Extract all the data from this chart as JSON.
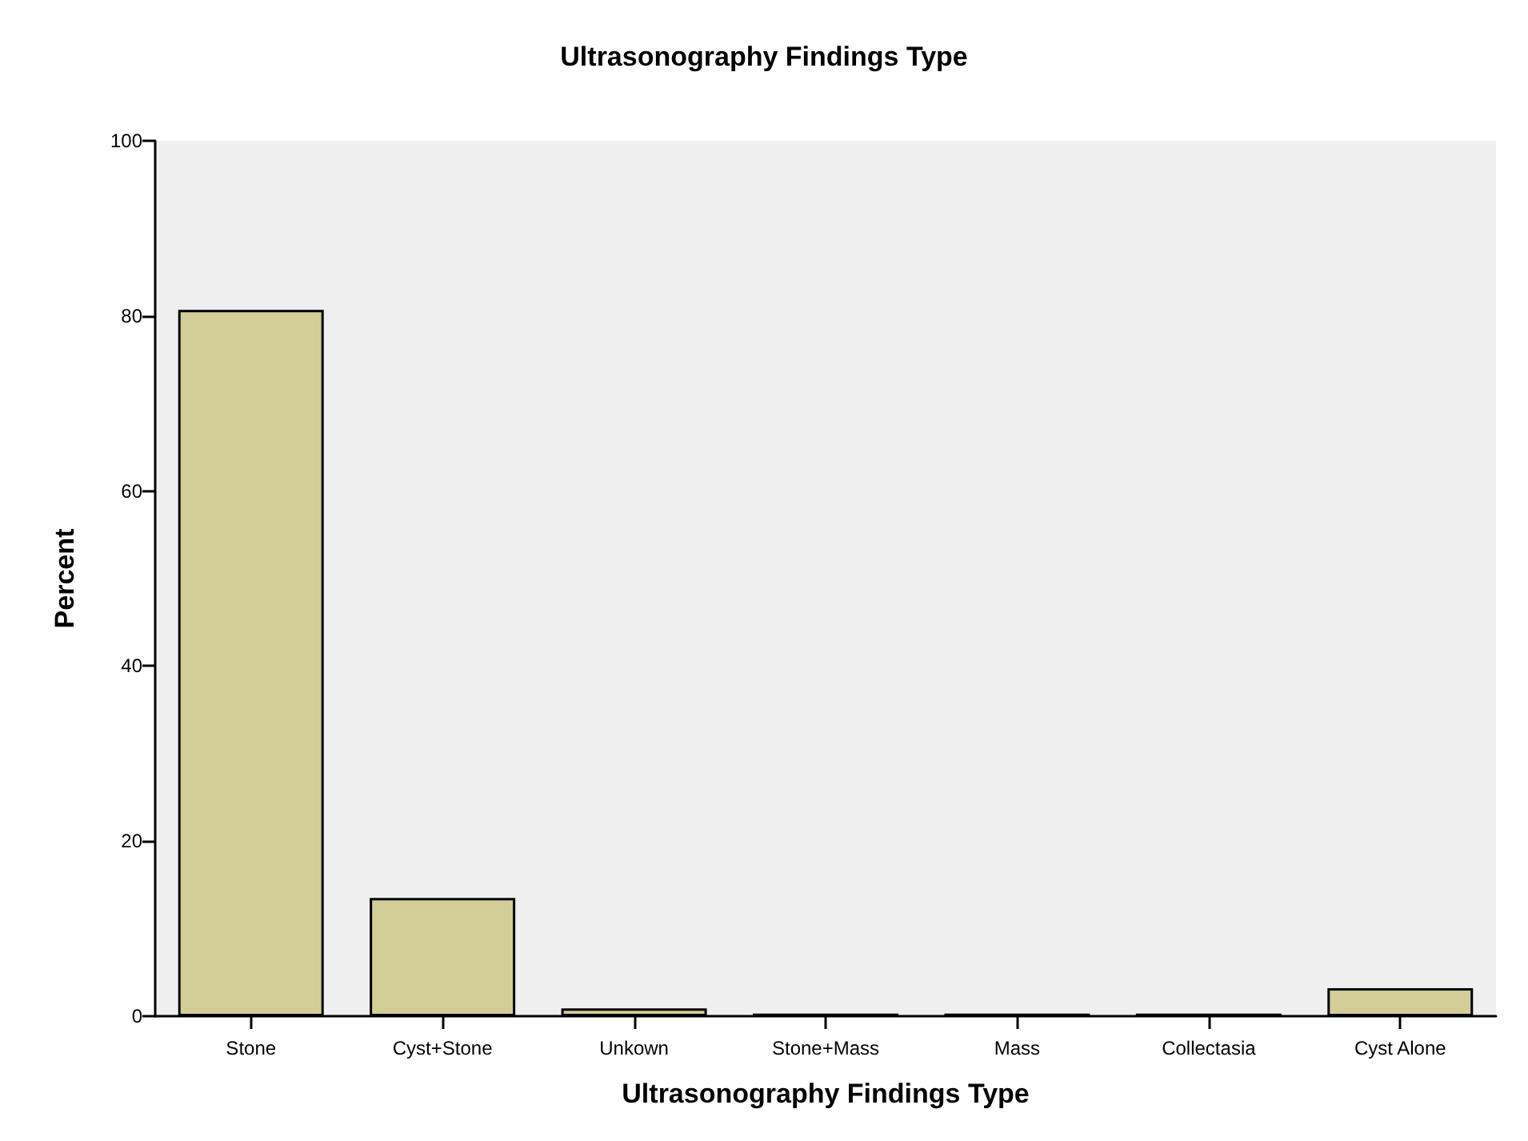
{
  "chart_data": {
    "type": "bar",
    "title": "Ultrasonography Findings Type",
    "xlabel": "Ultrasonography Findings Type",
    "ylabel": "Percent",
    "categories": [
      "Stone",
      "Cyst+Stone",
      "Unkown",
      "Stone+Mass",
      "Mass",
      "Collectasia",
      "Cyst Alone"
    ],
    "values": [
      80.7,
      13.5,
      0.9,
      0.3,
      0.3,
      0.3,
      3.2
    ],
    "color": "#d3ce97",
    "ylim": [
      0,
      100
    ],
    "yticks": [
      0,
      20,
      40,
      60,
      80,
      100
    ],
    "grid": false
  }
}
